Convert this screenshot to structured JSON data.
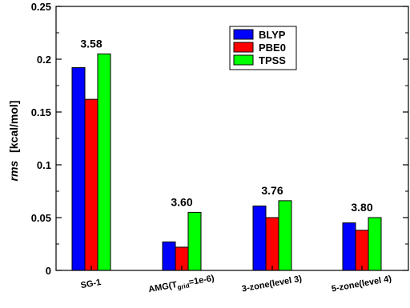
{
  "chart_data": {
    "type": "bar",
    "categories": [
      "SG-1",
      "AMG(T_grid=1e-6)",
      "3-zone(level 3)",
      "5-zone(level 4)"
    ],
    "category_label_parts": {
      "amg_main": "AMG(T",
      "amg_sub": "grid",
      "amg_tail": "=1e-6)"
    },
    "series": [
      {
        "name": "BLYP",
        "values": [
          0.192,
          0.027,
          0.061,
          0.045
        ],
        "color": "#0000ff"
      },
      {
        "name": "PBE0",
        "values": [
          0.162,
          0.022,
          0.05,
          0.038
        ],
        "color": "#ff0000"
      },
      {
        "name": "TPSS",
        "values": [
          0.205,
          0.055,
          0.066,
          0.05
        ],
        "color": "#00ff00"
      }
    ],
    "annotations": [
      "3.58",
      "3.60",
      "3.76",
      "3.80"
    ],
    "ylabel_italic": "rms",
    "ylabel_unit": "[kcal/mol]",
    "yticks": [
      "0",
      "0.05",
      "0.1",
      "0.15",
      "0.2",
      "0.25"
    ],
    "ytick_values": [
      0,
      0.05,
      0.1,
      0.15,
      0.2,
      0.25
    ],
    "ylim": [
      0,
      0.25
    ],
    "legend_position": "top-center",
    "grid": false
  }
}
